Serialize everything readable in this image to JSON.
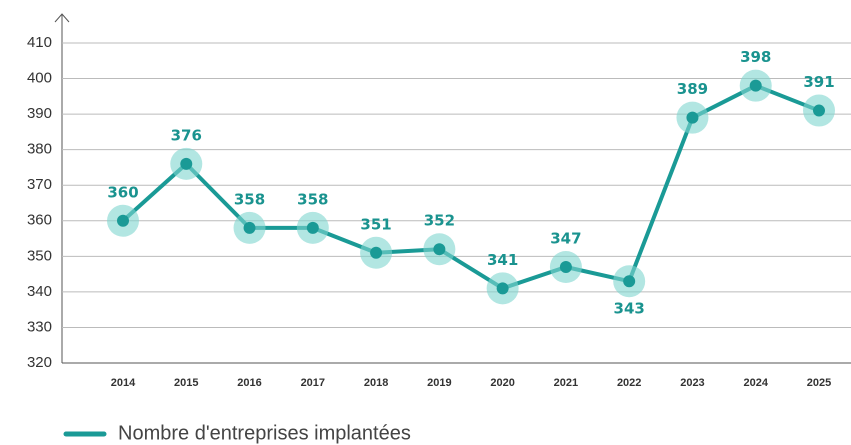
{
  "chart_data": {
    "type": "line",
    "categories": [
      "2014",
      "2015",
      "2016",
      "2017",
      "2018",
      "2019",
      "2020",
      "2021",
      "2022",
      "2023",
      "2024",
      "2025"
    ],
    "series": [
      {
        "name": "Nombre d'entreprises implantées",
        "color": "#1a9a96",
        "values": [
          360,
          376,
          358,
          358,
          351,
          352,
          341,
          347,
          343,
          389,
          398,
          391
        ]
      }
    ],
    "ylim": [
      320,
      410
    ],
    "yticks": [
      320,
      330,
      340,
      350,
      360,
      370,
      380,
      390,
      400,
      410
    ],
    "grid": true,
    "legend": "bottom"
  }
}
